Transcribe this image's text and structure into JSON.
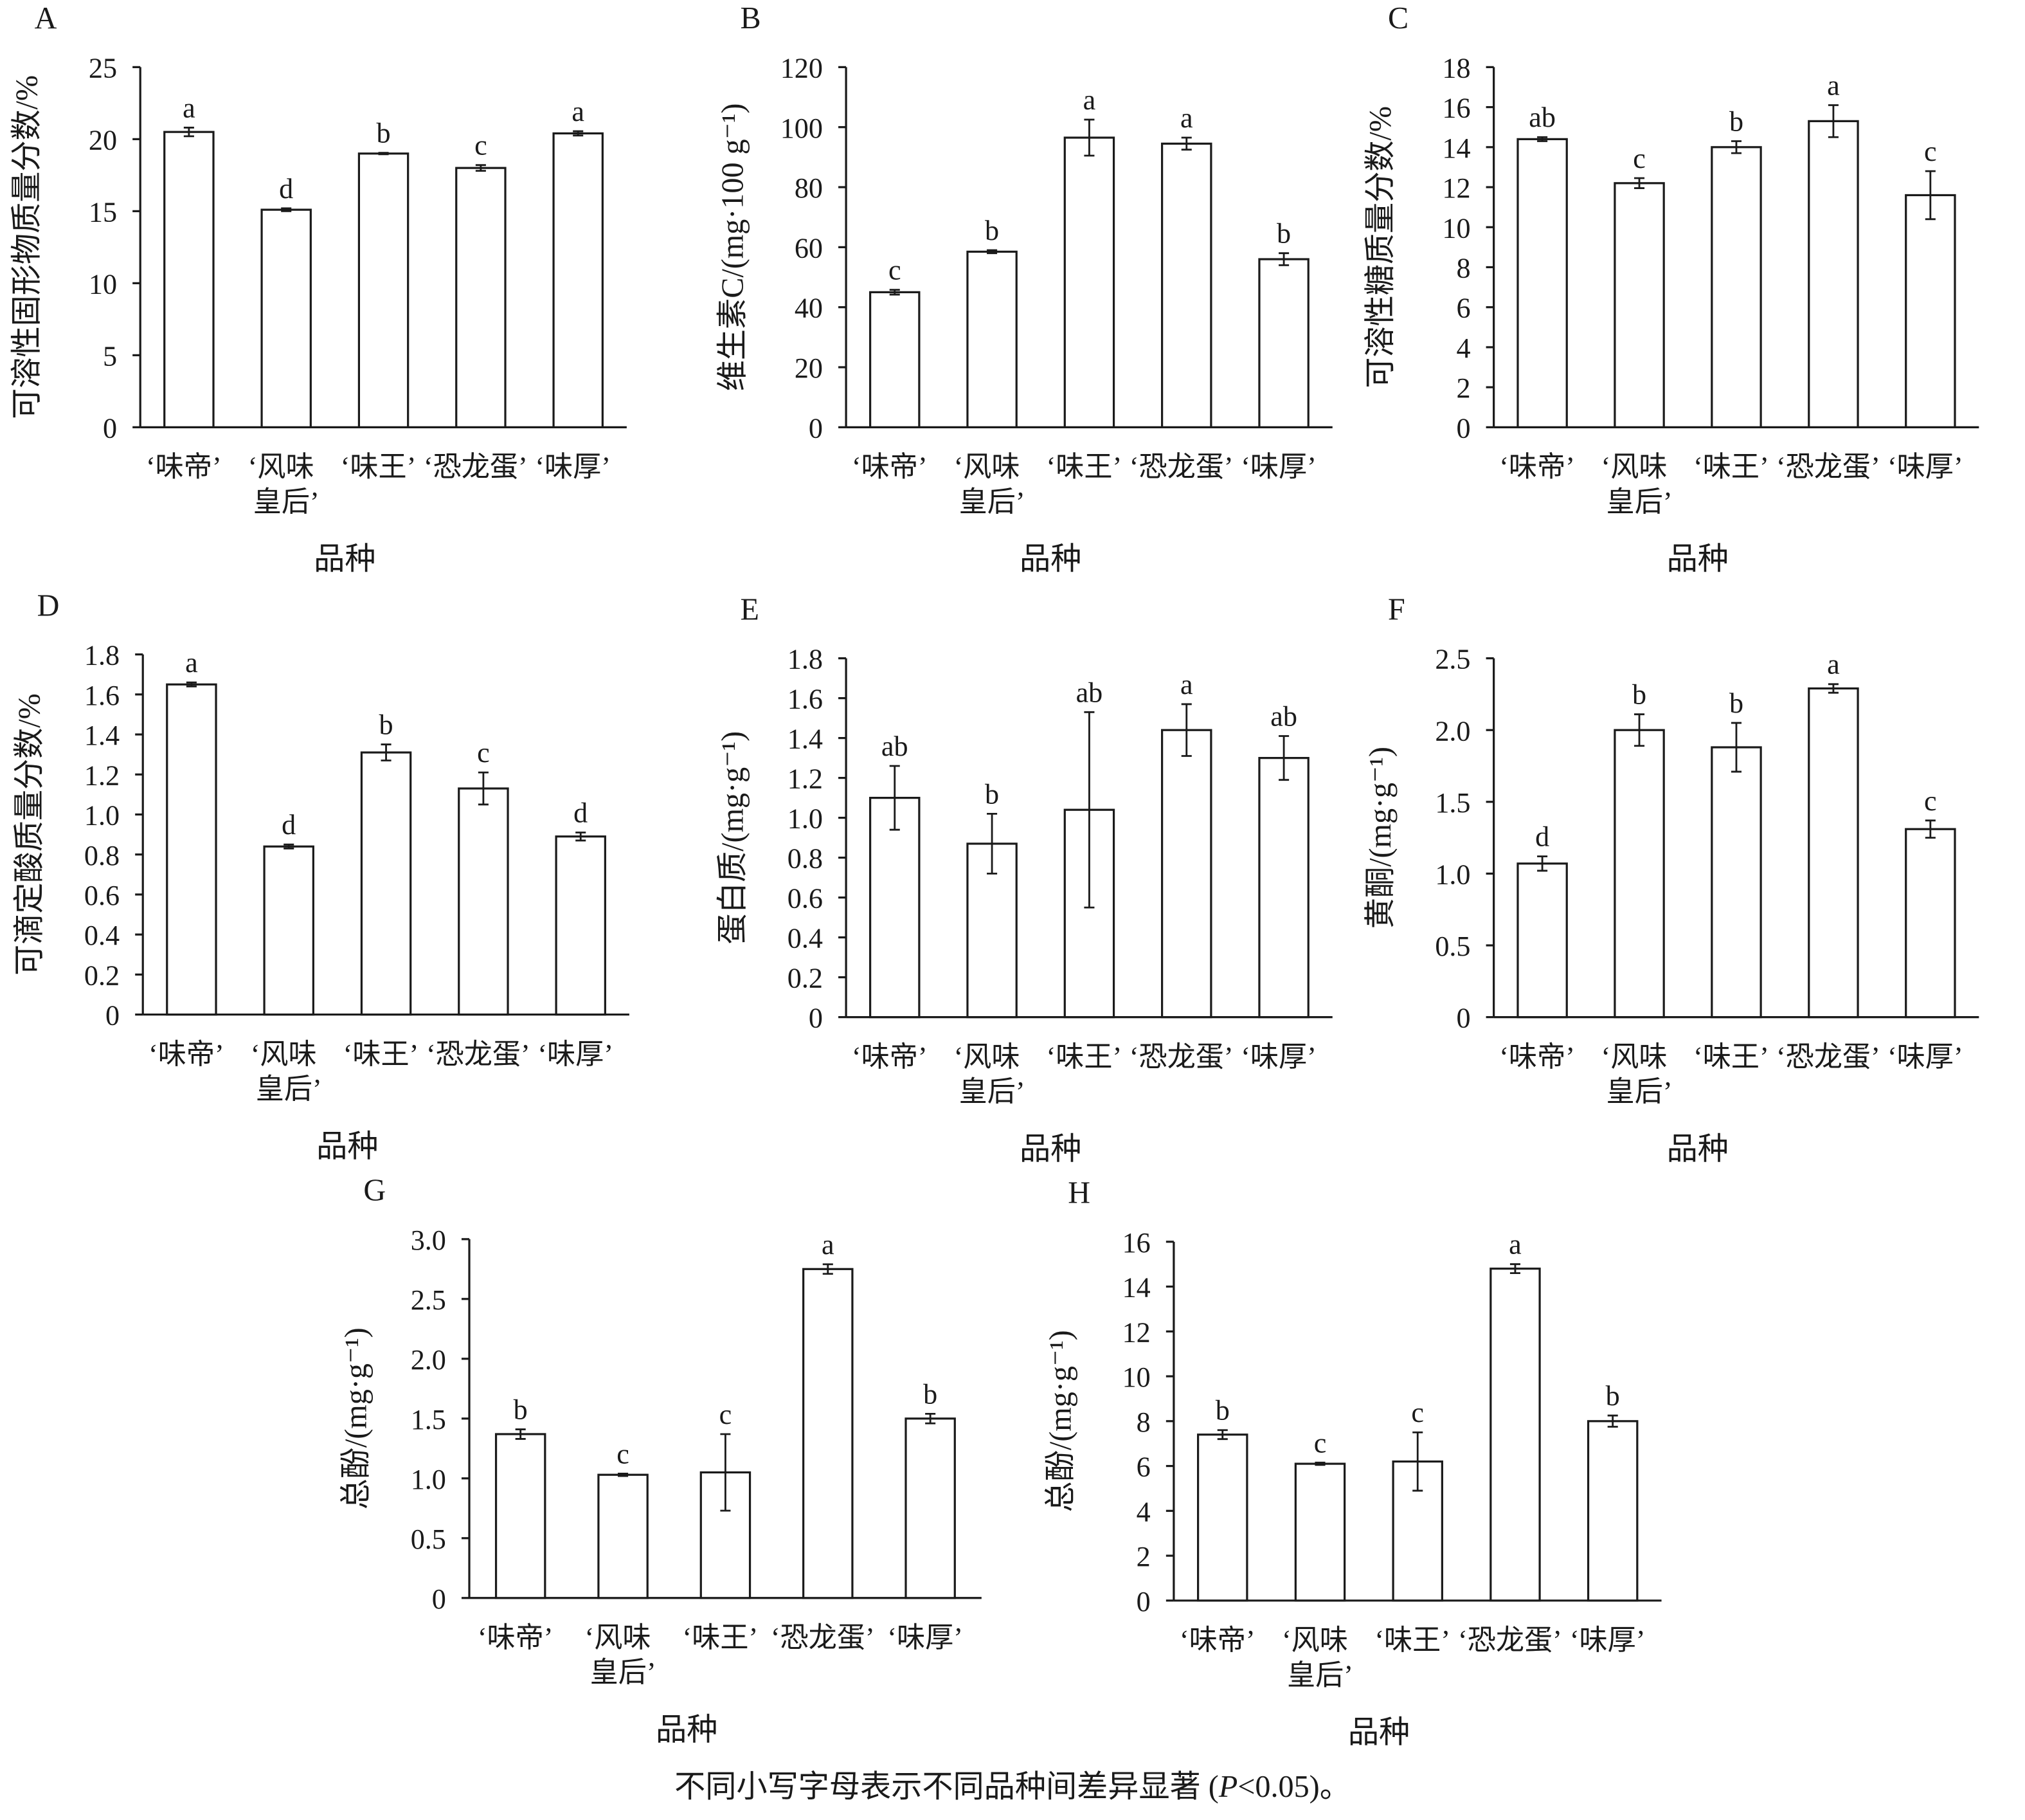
{
  "chart_data": [
    {
      "type": "bar",
      "panel": "A",
      "ylabel": "可溶性固形物质量分数/%",
      "xlabel": "品种",
      "categories": [
        [
          "‘味帝’"
        ],
        [
          "‘风味",
          "皇后’"
        ],
        [
          "‘味王’"
        ],
        [
          "‘恐龙蛋’"
        ],
        [
          "‘味厚’"
        ]
      ],
      "values": [
        20.5,
        15.1,
        19.0,
        18.0,
        20.4
      ],
      "errors": [
        0.3,
        0.1,
        0.05,
        0.2,
        0.15
      ],
      "labels": [
        "a",
        "d",
        "b",
        "c",
        "a"
      ],
      "ylim": [
        0,
        25
      ],
      "yticks": [
        0,
        5,
        10,
        15,
        20,
        25
      ]
    },
    {
      "type": "bar",
      "panel": "B",
      "ylabel": "维生素C/(mg·100 g⁻¹)",
      "xlabel": "品种",
      "categories": [
        [
          "‘味帝’"
        ],
        [
          "‘风味",
          "皇后’"
        ],
        [
          "‘味王’"
        ],
        [
          "‘恐龙蛋’"
        ],
        [
          "‘味厚’"
        ]
      ],
      "values": [
        45,
        58.5,
        96.5,
        94.5,
        56
      ],
      "errors": [
        0.8,
        0.5,
        6,
        2,
        2
      ],
      "labels": [
        "c",
        "b",
        "a",
        "a",
        "b"
      ],
      "ylim": [
        0,
        120
      ],
      "yticks": [
        0,
        20,
        40,
        60,
        80,
        100,
        120
      ]
    },
    {
      "type": "bar",
      "panel": "C",
      "ylabel": "可溶性糖质量分数/%",
      "xlabel": "品种",
      "categories": [
        [
          "‘味帝’"
        ],
        [
          "‘风味",
          "皇后’"
        ],
        [
          "‘味王’"
        ],
        [
          "‘恐龙蛋’"
        ],
        [
          "‘味厚’"
        ]
      ],
      "values": [
        14.4,
        12.2,
        14.0,
        15.3,
        11.6
      ],
      "errors": [
        0.1,
        0.25,
        0.3,
        0.8,
        1.2
      ],
      "labels": [
        "ab",
        "c",
        "b",
        "a",
        "c"
      ],
      "ylim": [
        0,
        18
      ],
      "yticks": [
        0,
        2,
        4,
        6,
        8,
        10,
        12,
        14,
        16,
        18
      ]
    },
    {
      "type": "bar",
      "panel": "D",
      "ylabel": "可滴定酸质量分数/%",
      "xlabel": "品种",
      "categories": [
        [
          "‘味帝’"
        ],
        [
          "‘风味",
          "皇后’"
        ],
        [
          "‘味王’"
        ],
        [
          "‘恐龙蛋’"
        ],
        [
          "‘味厚’"
        ]
      ],
      "values": [
        1.65,
        0.84,
        1.31,
        1.13,
        0.89
      ],
      "errors": [
        0.01,
        0.01,
        0.04,
        0.08,
        0.02
      ],
      "labels": [
        "a",
        "d",
        "b",
        "c",
        "d"
      ],
      "ylim": [
        0,
        1.8
      ],
      "yticks": [
        0,
        0.2,
        0.4,
        0.6,
        0.8,
        {
          "value": 1,
          "label": "1.0"
        },
        1.2,
        1.4,
        1.6,
        1.8
      ]
    },
    {
      "type": "bar",
      "panel": "E",
      "ylabel": "蛋白质/(mg·g⁻¹)",
      "xlabel": "品种",
      "categories": [
        [
          "‘味帝’"
        ],
        [
          "‘风味",
          "皇后’"
        ],
        [
          "‘味王’"
        ],
        [
          "‘恐龙蛋’"
        ],
        [
          "‘味厚’"
        ]
      ],
      "values": [
        1.1,
        0.87,
        1.04,
        1.44,
        1.3
      ],
      "errors": [
        0.16,
        0.15,
        0.49,
        0.13,
        0.11
      ],
      "labels": [
        "ab",
        "b",
        "ab",
        "a",
        "ab"
      ],
      "ylim": [
        0,
        1.8
      ],
      "yticks": [
        0,
        0.2,
        0.4,
        0.6,
        0.8,
        {
          "value": 1,
          "label": "1.0"
        },
        1.2,
        1.4,
        1.6,
        1.8
      ]
    },
    {
      "type": "bar",
      "panel": "F",
      "ylabel": "黄酮/(mg·g⁻¹)",
      "xlabel": "品种",
      "categories": [
        [
          "‘味帝’"
        ],
        [
          "‘风味",
          "皇后’"
        ],
        [
          "‘味王’"
        ],
        [
          "‘恐龙蛋’"
        ],
        [
          "‘味厚’"
        ]
      ],
      "values": [
        1.07,
        2.0,
        1.88,
        2.29,
        1.31
      ],
      "errors": [
        0.05,
        0.11,
        0.17,
        0.03,
        0.06
      ],
      "labels": [
        "d",
        "b",
        "b",
        "a",
        "c"
      ],
      "ylim": [
        0,
        2.5
      ],
      "yticks": [
        0,
        0.5,
        {
          "value": 1,
          "label": "1.0"
        },
        1.5,
        {
          "value": 2,
          "label": "2.0"
        },
        2.5
      ]
    },
    {
      "type": "bar",
      "panel": "G",
      "ylabel": "总酚/(mg·g⁻¹)",
      "xlabel": "品种",
      "categories": [
        [
          "‘味帝’"
        ],
        [
          "‘风味",
          "皇后’"
        ],
        [
          "‘味王’"
        ],
        [
          "‘恐龙蛋’"
        ],
        [
          "‘味厚’"
        ]
      ],
      "values": [
        1.37,
        1.03,
        1.05,
        2.75,
        1.5
      ],
      "errors": [
        0.04,
        0.01,
        0.32,
        0.04,
        0.04
      ],
      "labels": [
        "b",
        "c",
        "c",
        "a",
        "b"
      ],
      "ylim": [
        0,
        3
      ],
      "yticks": [
        0,
        0.5,
        {
          "value": 1,
          "label": "1.0"
        },
        1.5,
        {
          "value": 2,
          "label": "2.0"
        },
        2.5,
        {
          "value": 3,
          "label": "3.0"
        }
      ]
    },
    {
      "type": "bar",
      "panel": "H",
      "ylabel": "总酚/(mg·g⁻¹)",
      "xlabel": "品种",
      "categories": [
        [
          "‘味帝’"
        ],
        [
          "‘风味",
          "皇后’"
        ],
        [
          "‘味王’"
        ],
        [
          "‘恐龙蛋’"
        ],
        [
          "‘味厚’"
        ]
      ],
      "values": [
        7.4,
        6.1,
        6.2,
        14.8,
        8.0
      ],
      "errors": [
        0.2,
        0.05,
        1.3,
        0.2,
        0.25
      ],
      "labels": [
        "b",
        "c",
        "c",
        "a",
        "b"
      ],
      "ylim": [
        0,
        16
      ],
      "yticks": [
        0,
        2,
        4,
        6,
        8,
        10,
        12,
        14,
        16
      ]
    }
  ],
  "note": [
    "不同小写字母表示不同品种间差异显著 (",
    "P",
    "<0.05)。"
  ]
}
